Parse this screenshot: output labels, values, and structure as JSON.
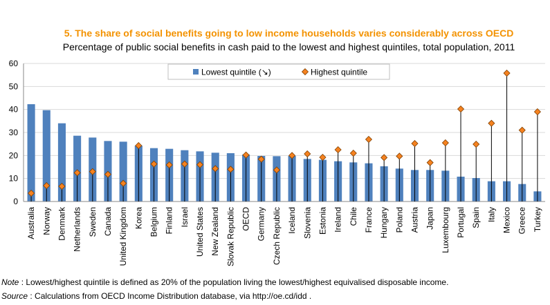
{
  "chart_data": {
    "type": "bar",
    "title": "5. The share of social benefits going to low income households varies considerably across OECD",
    "subtitle": "Percentage of public social benefits in cash paid to the lowest and highest quintiles, total population, 2011",
    "ylim": [
      0,
      60
    ],
    "yticks": [
      0,
      10,
      20,
      30,
      40,
      50,
      60
    ],
    "grid": true,
    "legend_position": "top-center",
    "categories": [
      "Australia",
      "Norway",
      "Denmark",
      "Netherlands",
      "Sweden",
      "Canada",
      "United Kingdom",
      "Korea",
      "Belgium",
      "Finland",
      "Israel",
      "United States",
      "New Zealand",
      "Slovak Republic",
      "OECD",
      "Germany",
      "Czech Republic",
      "Iceland",
      "Slovenia",
      "Estonia",
      "Ireland",
      "Chile",
      "France",
      "Hungary",
      "Poland",
      "Austria",
      "Japan",
      "Luxembourg",
      "Portugal",
      "Spain",
      "Italy",
      "Mexico",
      "Greece",
      "Turkey"
    ],
    "series": [
      {
        "name": "Lowest quintile (↘)",
        "kind": "bar",
        "color": "#4F81BD",
        "values": [
          42.3,
          39.7,
          34.0,
          28.6,
          27.8,
          26.3,
          26.0,
          24.3,
          23.2,
          22.9,
          22.3,
          21.8,
          21.2,
          21.0,
          20.4,
          19.8,
          19.7,
          19.8,
          18.5,
          18.1,
          17.5,
          17.0,
          16.6,
          15.3,
          14.3,
          13.7,
          13.7,
          13.4,
          10.8,
          10.2,
          8.8,
          8.8,
          7.6,
          4.4
        ]
      },
      {
        "name": "Highest quintile",
        "kind": "diamond",
        "color": "#F58220",
        "values": [
          3.6,
          6.9,
          6.6,
          12.5,
          13.0,
          11.8,
          7.9,
          24.3,
          16.3,
          15.9,
          16.3,
          16.0,
          14.3,
          14.0,
          20.2,
          18.4,
          13.7,
          20.0,
          20.7,
          19.2,
          22.5,
          21.0,
          27.0,
          19.1,
          19.7,
          25.2,
          16.9,
          25.5,
          40.2,
          24.9,
          34.0,
          55.8,
          31.0,
          39.0
        ]
      }
    ]
  },
  "note": {
    "label": "Note",
    "text": " : Lowest/highest quintile is defined as 20% of the population living the lowest/highest equivalised disposable income."
  },
  "source": {
    "label": "Source",
    "text": " : Calculations from OECD Income Distribution database, via http://oe.cd/idd ."
  }
}
